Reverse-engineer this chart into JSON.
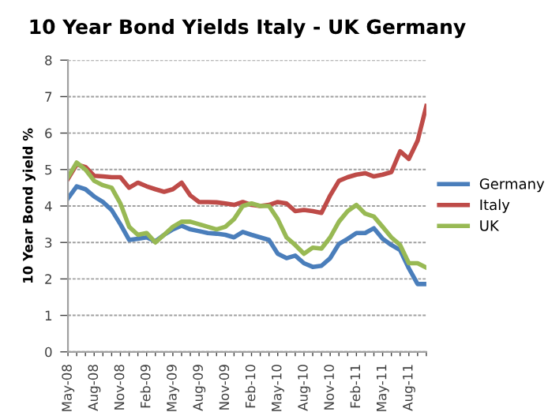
{
  "chart_data": {
    "type": "line",
    "title": "10 Year Bond Yields Italy - UK Germany",
    "ylabel": "10 Year Bond yield %",
    "categories": [
      "May-08",
      null,
      null,
      "Aug-08",
      null,
      null,
      "Nov-08",
      null,
      null,
      "Feb-09",
      null,
      null,
      "May-09",
      null,
      null,
      "Aug-09",
      null,
      null,
      "Nov-09",
      null,
      null,
      "Feb-10",
      null,
      null,
      "May-10",
      null,
      null,
      "Aug-10",
      null,
      null,
      "Nov-10",
      null,
      null,
      "Feb-11",
      null,
      null,
      "May-11",
      null,
      null,
      "Aug-11",
      null,
      null
    ],
    "series": [
      {
        "name": "Germany",
        "color": "#4a7ebb",
        "values": [
          4.21,
          4.54,
          4.46,
          4.26,
          4.11,
          3.89,
          3.5,
          3.07,
          3.1,
          3.14,
          3.03,
          3.21,
          3.36,
          3.46,
          3.36,
          3.31,
          3.26,
          3.24,
          3.21,
          3.14,
          3.29,
          3.21,
          3.14,
          3.07,
          2.69,
          2.57,
          2.64,
          2.43,
          2.33,
          2.36,
          2.57,
          2.96,
          3.1,
          3.26,
          3.26,
          3.39,
          3.1,
          2.93,
          2.79,
          2.29,
          1.86,
          1.86
        ]
      },
      {
        "name": "Italy",
        "color": "#be4b48",
        "values": [
          4.74,
          5.14,
          5.07,
          4.83,
          4.81,
          4.79,
          4.79,
          4.5,
          4.64,
          4.54,
          4.46,
          4.39,
          4.46,
          4.64,
          4.29,
          4.11,
          4.11,
          4.1,
          4.07,
          4.03,
          4.11,
          4.03,
          4.0,
          4.03,
          4.11,
          4.07,
          3.86,
          3.89,
          3.86,
          3.81,
          4.29,
          4.69,
          4.79,
          4.86,
          4.9,
          4.81,
          4.86,
          4.93,
          5.5,
          5.29,
          5.79,
          6.74
        ]
      },
      {
        "name": "UK",
        "color": "#98b954",
        "values": [
          4.79,
          5.19,
          5.0,
          4.69,
          4.57,
          4.5,
          4.07,
          3.43,
          3.21,
          3.26,
          3.0,
          3.21,
          3.43,
          3.57,
          3.57,
          3.5,
          3.43,
          3.36,
          3.43,
          3.64,
          4.0,
          4.07,
          4.0,
          4.0,
          3.64,
          3.14,
          2.93,
          2.69,
          2.86,
          2.83,
          3.14,
          3.57,
          3.86,
          4.03,
          3.79,
          3.71,
          3.43,
          3.14,
          2.93,
          2.43,
          2.43,
          2.31
        ]
      }
    ],
    "ylim": [
      0,
      8
    ],
    "yticks": [
      0,
      1,
      2,
      3,
      4,
      5,
      6,
      7,
      8
    ],
    "grid": "y",
    "legend": "right",
    "marker": "none",
    "line_style": "solid"
  }
}
